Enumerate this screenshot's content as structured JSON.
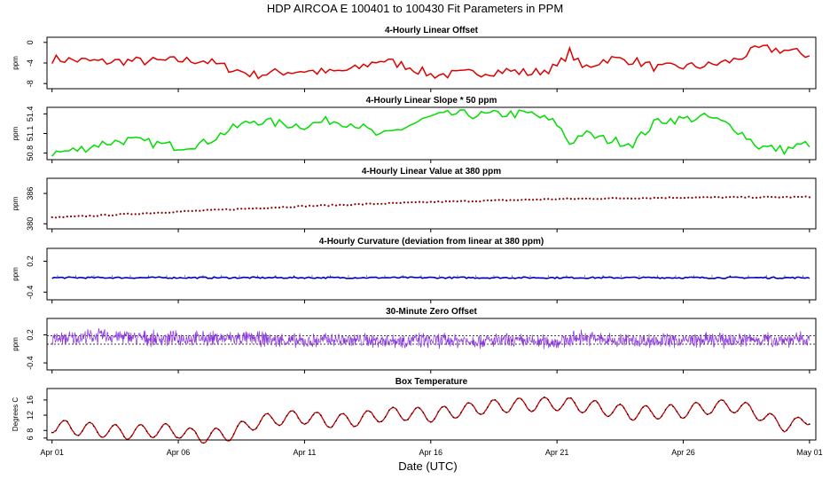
{
  "figure": {
    "title": "HDP   AIRCOA E   100401 to 100430   Fit Parameters in PPM",
    "xlabel": "Date (UTC)"
  },
  "chart_data": [
    {
      "type": "line",
      "title": "4-Hourly Linear Offset",
      "ylabel": "ppm",
      "ylim": [
        -9,
        1
      ],
      "yticks": [
        "0",
        "-4",
        "-8"
      ],
      "ytick_values": [
        0,
        -4,
        -8
      ],
      "x_unit": "days since Apr 01",
      "xlim": [
        -0.2,
        30.25
      ],
      "color": "#dd0000",
      "x": [
        0,
        1,
        2,
        3,
        4,
        5,
        6,
        7,
        8,
        9,
        10,
        11,
        12,
        13,
        14,
        15,
        16,
        17,
        18,
        19,
        20,
        20.5,
        21,
        22,
        23,
        24,
        25,
        26,
        27,
        28,
        29,
        30
      ],
      "y": [
        -3.2,
        -3.5,
        -3.8,
        -3.6,
        -3.7,
        -3.5,
        -3.5,
        -5,
        -6.3,
        -5.8,
        -5.5,
        -5.9,
        -5.2,
        -3.4,
        -4.5,
        -6.3,
        -6.2,
        -5.8,
        -5.5,
        -6,
        -4.8,
        -1.8,
        -5,
        -3.2,
        -3.5,
        -5,
        -4.7,
        -4.5,
        -3.5,
        -1.2,
        -1.5,
        -2.5
      ],
      "amp": 0.9
    },
    {
      "type": "line",
      "title": "4-Hourly Linear Slope * 50 ppm",
      "ylabel": "ppm",
      "ylim": [
        50.7,
        51.5
      ],
      "yticks": [
        "51.4",
        "51.1",
        "50.8"
      ],
      "ytick_values": [
        51.4,
        51.1,
        50.8
      ],
      "x_unit": "days since Apr 01",
      "xlim": [
        -0.2,
        30.25
      ],
      "color": "#00dd00",
      "x": [
        0,
        1,
        2,
        3,
        4,
        5,
        6,
        7,
        8,
        9,
        10,
        11,
        12,
        13,
        14,
        15,
        16,
        17,
        18,
        19,
        20,
        20.5,
        21,
        22,
        23,
        24,
        25,
        26,
        27,
        28,
        29,
        30
      ],
      "y": [
        50.8,
        50.85,
        50.95,
        51.0,
        50.95,
        50.9,
        50.95,
        51.15,
        51.3,
        51.25,
        51.22,
        51.3,
        51.25,
        51.05,
        51.2,
        51.35,
        51.4,
        51.38,
        51.4,
        51.4,
        51.25,
        50.95,
        51.1,
        51.0,
        50.95,
        51.3,
        51.32,
        51.35,
        51.2,
        50.9,
        50.85,
        50.95
      ],
      "amp": 0.07
    },
    {
      "type": "scatter",
      "title": "4-Hourly Linear Value at 380 ppm",
      "ylabel": "ppm",
      "ylim": [
        379,
        389
      ],
      "yticks": [
        "386",
        "380"
      ],
      "ytick_values": [
        386,
        380
      ],
      "x_unit": "days since Apr 01",
      "xlim": [
        -0.2,
        30.25
      ],
      "color": "#880000",
      "x": [
        0,
        5,
        10,
        15,
        20,
        25,
        30
      ],
      "y": [
        381.2,
        382.4,
        383.5,
        384.3,
        384.9,
        385.2,
        385.3
      ],
      "amp": 0.12
    },
    {
      "type": "line",
      "title": "4-Hourly Curvature (deviation from linear at 380 ppm)",
      "ylabel": "ppm",
      "ylim": [
        -0.55,
        0.45
      ],
      "yticks": [
        "0.2",
        "-0.4"
      ],
      "ytick_values": [
        0.2,
        -0.4
      ],
      "x_unit": "days since Apr 01",
      "xlim": [
        -0.2,
        30.25
      ],
      "color": "#0000bb",
      "x": [
        0,
        30
      ],
      "y": [
        -0.12,
        -0.12
      ],
      "amp": 0.015
    },
    {
      "type": "line",
      "title": "30-Minute Zero Offset",
      "ylabel": "ppm",
      "ylim": [
        -0.55,
        0.55
      ],
      "yticks": [
        "0.2",
        "-0.4"
      ],
      "ytick_values": [
        0.2,
        -0.4
      ],
      "x_unit": "days since Apr 01",
      "xlim": [
        -0.2,
        30.25
      ],
      "color": "#8833dd",
      "x": [
        0,
        2,
        4,
        8,
        10,
        11,
        12,
        16,
        20,
        21,
        22,
        26,
        28,
        30
      ],
      "y": [
        0.1,
        0.18,
        0.12,
        0.12,
        0.05,
        0.1,
        0.08,
        0.08,
        0.05,
        0.15,
        0.08,
        0.08,
        0.1,
        0.1
      ],
      "amp": 0.12,
      "reference_lines": [
        0.0,
        0.18
      ]
    },
    {
      "type": "line",
      "title": "Box Temperature",
      "ylabel": "Degrees C",
      "ylim": [
        5.5,
        19
      ],
      "yticks": [
        "16",
        "12",
        "8",
        "6"
      ],
      "ytick_values": [
        16,
        12,
        8,
        6
      ],
      "x_unit": "days since Apr 01",
      "xlim": [
        -0.2,
        30.25
      ],
      "color": "#cc0000",
      "x": [
        0,
        1,
        2,
        3,
        4,
        5,
        5.5,
        6,
        7,
        7.5,
        8,
        9,
        10,
        11,
        12,
        13,
        14,
        15,
        16,
        17,
        18,
        19,
        20,
        21,
        22,
        23,
        24,
        25,
        26,
        27,
        28,
        28.5,
        29,
        29.5,
        30
      ],
      "y": [
        9.2,
        8.5,
        8.0,
        7.5,
        8.0,
        7.8,
        6.8,
        6.5,
        7.0,
        8.5,
        10.0,
        11.2,
        11.5,
        10.5,
        10.8,
        12.0,
        12.5,
        12.0,
        13.0,
        14.0,
        14.5,
        14.8,
        15.0,
        14.5,
        13.5,
        12.5,
        12.8,
        13.0,
        14.0,
        14.5,
        12.5,
        10.5,
        9.5,
        9.5,
        11.5
      ],
      "amp": 1.8,
      "diurnal": true
    }
  ],
  "x_axis": {
    "tick_values": [
      0,
      5,
      10,
      15,
      20,
      25,
      30
    ],
    "tick_labels": [
      "Apr 01",
      "Apr 06",
      "Apr 11",
      "Apr 16",
      "Apr 21",
      "Apr 26",
      "May 01"
    ]
  }
}
